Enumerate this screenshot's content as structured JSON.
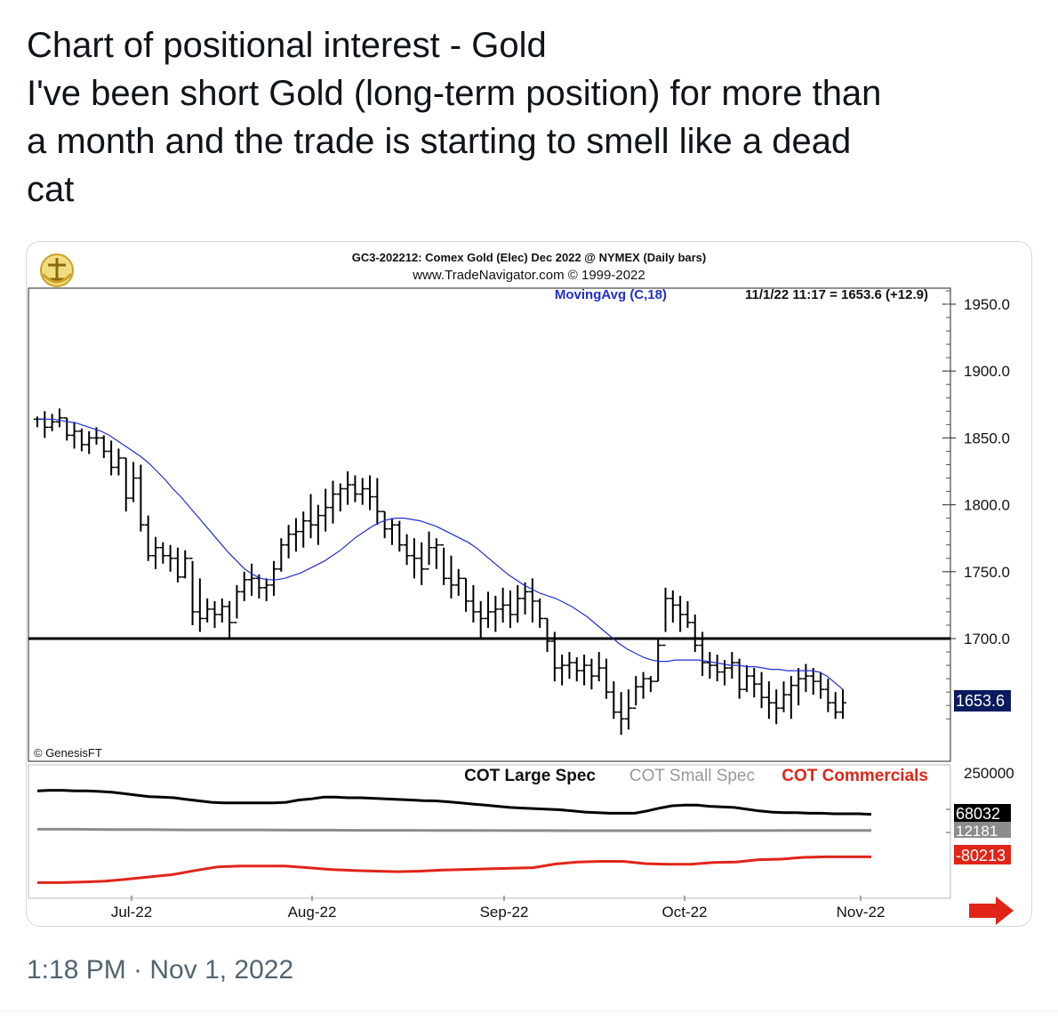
{
  "tweet": {
    "lines": [
      "Chart of positional interest - Gold",
      "I've been short Gold (long-term position) for more than",
      "a month and the trade is starting to smell like a dead",
      "cat"
    ],
    "timestamp": "1:18 PM · Nov 1, 2022"
  },
  "chart": {
    "header_line1": "GC3-202212:  Comex Gold (Elec) Dec 2022 @ NYMEX  (Daily bars)",
    "header_line2": "www.TradeNavigator.com © 1999-2022",
    "ma_label": "MovingAvg (C,18)",
    "ma_info": "11/1/22 11:17 = 1653.6 (+12.9)",
    "copyright": "© GenesisFT",
    "last_price_tag": "1653.6",
    "cot_labels": {
      "large": "COT Large Spec",
      "small": "COT Small Spec",
      "commercials": "COT Commercials"
    },
    "cot_axis_label": "250000",
    "cot_tags": {
      "large": "68032",
      "small": "12181",
      "commercials": "-80213"
    },
    "colors": {
      "ma": "#1f2fd0",
      "commercials": "#e02518",
      "small": "#8c8c8c",
      "large": "#000000",
      "arrow": "#e02518"
    }
  },
  "chart_data": [
    {
      "type": "line",
      "title": "GC3-202212: Comex Gold (Elec) Dec 2022 @ NYMEX (Daily bars)",
      "chart_style": "ohlc-bars with moving average overlay",
      "x_tick_labels": [
        "Jul-22",
        "Aug-22",
        "Sep-22",
        "Oct-22",
        "Nov-22"
      ],
      "y_tick_labels": [
        "1950.0",
        "1900.0",
        "1850.0",
        "1800.0",
        "1750.0",
        "1700.0"
      ],
      "ylim": [
        1625,
        1970
      ],
      "horizontal_line": 1700,
      "bars": [
        [
          1866,
          1858,
          1864
        ],
        [
          1870,
          1850,
          1858
        ],
        [
          1868,
          1855,
          1862
        ],
        [
          1872,
          1858,
          1865
        ],
        [
          1865,
          1848,
          1852
        ],
        [
          1862,
          1842,
          1855
        ],
        [
          1857,
          1840,
          1845
        ],
        [
          1855,
          1838,
          1850
        ],
        [
          1858,
          1845,
          1850
        ],
        [
          1852,
          1835,
          1840
        ],
        [
          1848,
          1822,
          1828
        ],
        [
          1842,
          1822,
          1835
        ],
        [
          1835,
          1795,
          1805
        ],
        [
          1832,
          1802,
          1820
        ],
        [
          1830,
          1780,
          1785
        ],
        [
          1792,
          1758,
          1762
        ],
        [
          1776,
          1752,
          1768
        ],
        [
          1772,
          1756,
          1762
        ],
        [
          1770,
          1750,
          1760
        ],
        [
          1768,
          1742,
          1746
        ],
        [
          1766,
          1745,
          1760
        ],
        [
          1758,
          1710,
          1720
        ],
        [
          1745,
          1705,
          1715
        ],
        [
          1730,
          1712,
          1722
        ],
        [
          1728,
          1708,
          1718
        ],
        [
          1730,
          1712,
          1724
        ],
        [
          1728,
          1700,
          1712
        ],
        [
          1740,
          1715,
          1735
        ],
        [
          1750,
          1728,
          1744
        ],
        [
          1756,
          1732,
          1745
        ],
        [
          1748,
          1730,
          1738
        ],
        [
          1745,
          1728,
          1740
        ],
        [
          1758,
          1732,
          1752
        ],
        [
          1775,
          1750,
          1770
        ],
        [
          1785,
          1760,
          1778
        ],
        [
          1790,
          1765,
          1780
        ],
        [
          1795,
          1768,
          1788
        ],
        [
          1808,
          1775,
          1785
        ],
        [
          1800,
          1770,
          1792
        ],
        [
          1812,
          1780,
          1798
        ],
        [
          1818,
          1786,
          1808
        ],
        [
          1816,
          1795,
          1812
        ],
        [
          1825,
          1800,
          1815
        ],
        [
          1822,
          1802,
          1808
        ],
        [
          1820,
          1800,
          1812
        ],
        [
          1822,
          1796,
          1806
        ],
        [
          1820,
          1785,
          1795
        ],
        [
          1795,
          1775,
          1782
        ],
        [
          1790,
          1770,
          1785
        ],
        [
          1788,
          1765,
          1770
        ],
        [
          1778,
          1755,
          1762
        ],
        [
          1775,
          1745,
          1760
        ],
        [
          1772,
          1740,
          1752
        ],
        [
          1780,
          1755,
          1768
        ],
        [
          1775,
          1752,
          1770
        ],
        [
          1768,
          1740,
          1745
        ],
        [
          1762,
          1730,
          1740
        ],
        [
          1752,
          1732,
          1745
        ],
        [
          1745,
          1720,
          1728
        ],
        [
          1740,
          1712,
          1720
        ],
        [
          1728,
          1700,
          1715
        ],
        [
          1735,
          1708,
          1720
        ],
        [
          1732,
          1705,
          1722
        ],
        [
          1738,
          1712,
          1725
        ],
        [
          1736,
          1708,
          1718
        ],
        [
          1740,
          1712,
          1730
        ],
        [
          1742,
          1718,
          1735
        ],
        [
          1745,
          1712,
          1728
        ],
        [
          1730,
          1708,
          1715
        ],
        [
          1715,
          1690,
          1698
        ],
        [
          1705,
          1668,
          1678
        ],
        [
          1688,
          1665,
          1680
        ],
        [
          1690,
          1670,
          1682
        ],
        [
          1686,
          1668,
          1676
        ],
        [
          1688,
          1665,
          1680
        ],
        [
          1685,
          1662,
          1672
        ],
        [
          1690,
          1668,
          1678
        ],
        [
          1685,
          1655,
          1660
        ],
        [
          1668,
          1640,
          1645
        ],
        [
          1660,
          1628,
          1640
        ],
        [
          1662,
          1632,
          1648
        ],
        [
          1672,
          1650,
          1664
        ],
        [
          1675,
          1655,
          1670
        ],
        [
          1672,
          1660,
          1668
        ],
        [
          1700,
          1668,
          1695
        ],
        [
          1738,
          1705,
          1730
        ],
        [
          1736,
          1712,
          1725
        ],
        [
          1732,
          1705,
          1718
        ],
        [
          1728,
          1708,
          1712
        ],
        [
          1718,
          1690,
          1695
        ],
        [
          1705,
          1672,
          1682
        ],
        [
          1690,
          1670,
          1680
        ],
        [
          1688,
          1668,
          1675
        ],
        [
          1684,
          1665,
          1678
        ],
        [
          1690,
          1670,
          1682
        ],
        [
          1685,
          1655,
          1662
        ],
        [
          1680,
          1660,
          1672
        ],
        [
          1678,
          1656,
          1666
        ],
        [
          1675,
          1648,
          1656
        ],
        [
          1668,
          1640,
          1652
        ],
        [
          1662,
          1636,
          1648
        ],
        [
          1668,
          1645,
          1658
        ],
        [
          1672,
          1640,
          1665
        ],
        [
          1678,
          1650,
          1670
        ],
        [
          1681,
          1660,
          1672
        ],
        [
          1678,
          1658,
          1668
        ],
        [
          1675,
          1655,
          1662
        ],
        [
          1670,
          1645,
          1652
        ],
        [
          1660,
          1640,
          1645
        ],
        [
          1662,
          1640,
          1652
        ]
      ],
      "series": [
        {
          "name": "MovingAvg (C,18)",
          "values": [
            1864,
            1864,
            1864,
            1863,
            1862,
            1861,
            1859,
            1857,
            1855,
            1852,
            1848,
            1844,
            1840,
            1836,
            1831,
            1825,
            1819,
            1812,
            1806,
            1799,
            1792,
            1785,
            1778,
            1771,
            1764,
            1758,
            1752,
            1748,
            1745,
            1744,
            1744,
            1745,
            1747,
            1749,
            1752,
            1755,
            1758,
            1762,
            1766,
            1771,
            1776,
            1780,
            1784,
            1787,
            1789,
            1790,
            1790,
            1789,
            1788,
            1786,
            1784,
            1781,
            1778,
            1775,
            1772,
            1768,
            1763,
            1758,
            1753,
            1748,
            1744,
            1740,
            1737,
            1734,
            1732,
            1730,
            1727,
            1724,
            1720,
            1716,
            1711,
            1706,
            1701,
            1696,
            1692,
            1689,
            1686,
            1684,
            1683,
            1683,
            1684,
            1684,
            1684,
            1684,
            1683,
            1682,
            1681,
            1680,
            1680,
            1679,
            1679,
            1678,
            1677,
            1677,
            1676,
            1676,
            1676,
            1676,
            1675,
            1672,
            1667,
            1662
          ]
        }
      ]
    },
    {
      "type": "line",
      "title": "",
      "y_tick_labels": [
        "250000"
      ],
      "series": [
        {
          "name": "COT Large Spec",
          "values": [
            150000,
            152000,
            152000,
            150000,
            150000,
            148000,
            145000,
            140000,
            135000,
            130000,
            128000,
            126000,
            120000,
            115000,
            110000,
            108000,
            108000,
            108000,
            108000,
            108000,
            110000,
            118000,
            122000,
            128000,
            128000,
            126000,
            126000,
            124000,
            122000,
            120000,
            118000,
            116000,
            115000,
            112000,
            108000,
            104000,
            100000,
            96000,
            92000,
            90000,
            88000,
            86000,
            84000,
            80000,
            76000,
            74000,
            72000,
            72000,
            72000,
            80000,
            90000,
            98000,
            100000,
            100000,
            96000,
            94000,
            92000,
            86000,
            80000,
            76000,
            74000,
            74000,
            72000,
            72000,
            70000,
            70000,
            70000,
            68032
          ]
        },
        {
          "name": "COT Small Spec",
          "values": [
            16000,
            16000,
            15000,
            15000,
            14000,
            14000,
            14000,
            13000,
            13000,
            12500,
            12500,
            12000,
            12000,
            11500,
            11500,
            11000,
            11000,
            11000,
            11000,
            11500,
            11500,
            12000,
            12000,
            12181
          ]
        },
        {
          "name": "COT Commercials",
          "values": [
            -170000,
            -170000,
            -168000,
            -165000,
            -158000,
            -150000,
            -142000,
            -128000,
            -115000,
            -112000,
            -112000,
            -112000,
            -118000,
            -124000,
            -128000,
            -130000,
            -132000,
            -130000,
            -126000,
            -124000,
            -122000,
            -120000,
            -118000,
            -105000,
            -98000,
            -96000,
            -96000,
            -104000,
            -106000,
            -106000,
            -100000,
            -98000,
            -90000,
            -88000,
            -82000,
            -80000,
            -80000,
            -80213
          ]
        }
      ]
    }
  ]
}
